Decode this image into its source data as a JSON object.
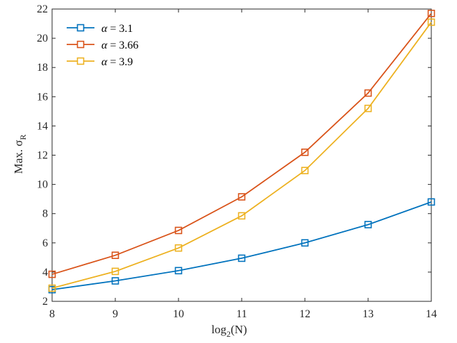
{
  "chart_data": {
    "type": "line",
    "title": "",
    "xlabel_main": "log",
    "xlabel_sub": "2",
    "xlabel_tail": "(N)",
    "ylabel_main": "Max. σ",
    "ylabel_sub": "R",
    "x": [
      8,
      9,
      10,
      11,
      12,
      13,
      14
    ],
    "xlim": [
      8,
      14
    ],
    "ylim": [
      2,
      22
    ],
    "xticks": [
      8,
      9,
      10,
      11,
      12,
      13,
      14
    ],
    "yticks": [
      2,
      4,
      6,
      8,
      10,
      12,
      14,
      16,
      18,
      20,
      22
    ],
    "grid": false,
    "legend_position": "top-left",
    "series": [
      {
        "name": "α = 3.1",
        "symbol": "α",
        "eq": " = 3.1",
        "color": "#0072BD",
        "marker": "square",
        "values": [
          2.8,
          3.4,
          4.1,
          4.95,
          6.0,
          7.25,
          8.8
        ]
      },
      {
        "name": "α = 3.66",
        "symbol": "α",
        "eq": " = 3.66",
        "color": "#D95319",
        "marker": "square",
        "values": [
          3.85,
          5.15,
          6.85,
          9.15,
          12.2,
          16.25,
          21.7
        ]
      },
      {
        "name": "α = 3.9",
        "symbol": "α",
        "eq": " = 3.9",
        "color": "#EDB120",
        "marker": "square",
        "values": [
          2.9,
          4.05,
          5.65,
          7.85,
          10.95,
          15.2,
          21.1
        ]
      }
    ]
  }
}
